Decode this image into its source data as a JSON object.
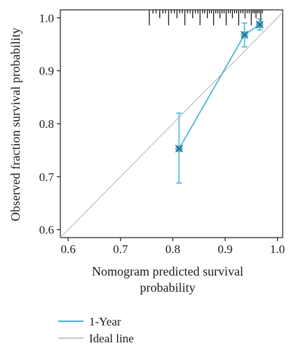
{
  "chart_data": {
    "type": "line",
    "title": "",
    "xlabel_lines": [
      "Nomogram predicted survival",
      "probability"
    ],
    "ylabel": "Observed fraction survival probability",
    "xlim": [
      0.585,
      1.01
    ],
    "ylim": [
      0.585,
      1.015
    ],
    "xticks": [
      0.6,
      0.7,
      0.8,
      0.9,
      1.0
    ],
    "xtick_labels": [
      "0.6",
      "0.7",
      "0.8",
      "0.9",
      "1.0"
    ],
    "yticks": [
      0.6,
      0.7,
      0.8,
      0.9,
      1.0
    ],
    "ytick_labels": [
      "0.6",
      "0.7",
      "0.8",
      "0.9",
      "1.0"
    ],
    "grid": false,
    "legend_position": "bottom-left",
    "series": [
      {
        "name": "1-Year",
        "color": "#4ab8d8",
        "points": [
          {
            "x": 0.812,
            "y": 0.753,
            "lo": 0.688,
            "hi": 0.82
          },
          {
            "x": 0.937,
            "y": 0.968,
            "lo": 0.945,
            "hi": 0.99
          },
          {
            "x": 0.966,
            "y": 0.987,
            "lo": 0.977,
            "hi": 0.998
          }
        ]
      },
      {
        "name": "Ideal line",
        "color": "#c8c8c8",
        "points": [
          {
            "x": 0.585,
            "y": 0.585
          },
          {
            "x": 1.01,
            "y": 1.01
          }
        ]
      }
    ],
    "rug_x": [
      0.755,
      0.762,
      0.768,
      0.775,
      0.781,
      0.786,
      0.792,
      0.797,
      0.803,
      0.808,
      0.813,
      0.818,
      0.823,
      0.828,
      0.833,
      0.838,
      0.843,
      0.848,
      0.852,
      0.857,
      0.861,
      0.866,
      0.87,
      0.874,
      0.878,
      0.882,
      0.886,
      0.89,
      0.894,
      0.898,
      0.902,
      0.906,
      0.91,
      0.914,
      0.918,
      0.922,
      0.926,
      0.93,
      0.934,
      0.938,
      0.942,
      0.946,
      0.95,
      0.953,
      0.956,
      0.959,
      0.962,
      0.965,
      0.968,
      0.971
    ]
  }
}
